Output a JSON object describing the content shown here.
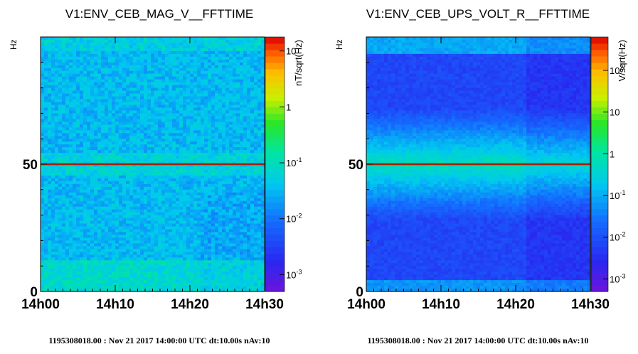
{
  "chart_data": [
    {
      "type": "heatmap",
      "title": "V1:ENV_CEB_MAG_V__FFTTIME",
      "ylabel": "Hz",
      "zlabel": "nT/sqrt(Hz)",
      "x_ticks": [
        "14h00",
        "14h10",
        "14h20",
        "14h30"
      ],
      "y_ticks": [
        "0",
        "50"
      ],
      "ylim": [
        0,
        100
      ],
      "zscale": "log",
      "z_ticks": [
        {
          "base": "10",
          "exp": "-3",
          "log": -3
        },
        {
          "base": "10",
          "exp": "-2",
          "log": -2
        },
        {
          "base": "10",
          "exp": "-1",
          "log": -1
        },
        {
          "base": "1",
          "exp": "",
          "log": 0
        },
        {
          "base": "10",
          "exp": "",
          "log": 1
        }
      ],
      "zlog_range": [
        -3.3,
        1.25
      ],
      "lines_hz": [
        50
      ],
      "footer": "1195308018.00 : Nov 21 2017 14:00:00 UTC dt:10.00s nAv:10"
    },
    {
      "type": "heatmap",
      "title": "V1:ENV_CEB_UPS_VOLT_R__FFTTIME",
      "ylabel": "Hz",
      "zlabel": "V/sqrt(Hz)",
      "x_ticks": [
        "14h00",
        "14h10",
        "14h20",
        "14h30"
      ],
      "y_ticks": [
        "0",
        "50"
      ],
      "ylim": [
        0,
        100
      ],
      "zscale": "log",
      "z_ticks": [
        {
          "base": "10",
          "exp": "-3",
          "log": -3
        },
        {
          "base": "10",
          "exp": "-2",
          "log": -2
        },
        {
          "base": "10",
          "exp": "-1",
          "log": -1
        },
        {
          "base": "1",
          "exp": "",
          "log": 0
        },
        {
          "base": "10",
          "exp": "",
          "log": 1
        },
        {
          "base": "10",
          "exp": "2",
          "log": 2
        }
      ],
      "zlog_range": [
        -3.3,
        2.8
      ],
      "lines_hz": [
        50
      ],
      "footer": "1195308018.00 : Nov 21 2017 14:00:00 UTC dt:10.00s nAv:10"
    }
  ]
}
